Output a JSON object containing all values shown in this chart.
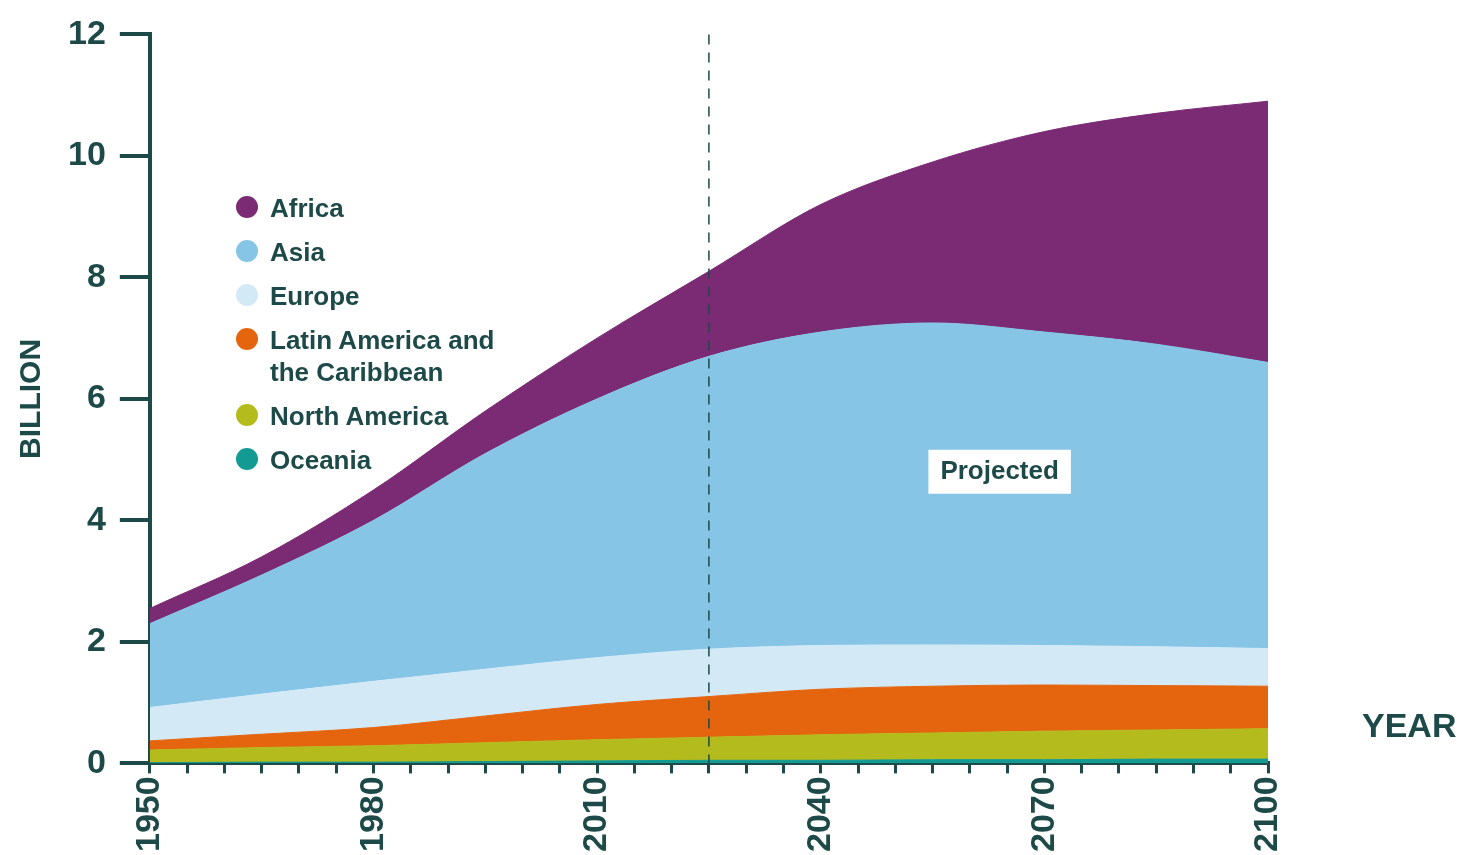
{
  "chart_data": {
    "type": "area",
    "stacked": true,
    "xlabel": "YEAR",
    "ylabel": "BILLION",
    "x": [
      1950,
      1965,
      1980,
      1995,
      2010,
      2025,
      2040,
      2055,
      2070,
      2085,
      2100
    ],
    "series": [
      {
        "name": "Oceania",
        "color": "#139a93",
        "values": [
          0.01,
          0.02,
          0.02,
          0.03,
          0.04,
          0.05,
          0.05,
          0.06,
          0.06,
          0.07,
          0.07
        ]
      },
      {
        "name": "North America",
        "color": "#b4bb1c",
        "values": [
          0.21,
          0.24,
          0.27,
          0.31,
          0.35,
          0.38,
          0.42,
          0.44,
          0.47,
          0.48,
          0.5
        ]
      },
      {
        "name": "Latin America and the Caribbean",
        "color": "#e5650f",
        "values": [
          0.15,
          0.22,
          0.3,
          0.44,
          0.58,
          0.67,
          0.75,
          0.77,
          0.76,
          0.73,
          0.7
        ]
      },
      {
        "name": "Europe",
        "color": "#d4e9f6",
        "values": [
          0.55,
          0.66,
          0.76,
          0.77,
          0.77,
          0.78,
          0.72,
          0.68,
          0.65,
          0.64,
          0.62
        ]
      },
      {
        "name": "Asia",
        "color": "#86c5e6",
        "values": [
          1.38,
          1.96,
          2.65,
          3.55,
          4.26,
          4.82,
          5.16,
          5.3,
          5.16,
          4.98,
          4.71
        ]
      },
      {
        "name": "Africa",
        "color": "#7b2a74",
        "values": [
          0.25,
          0.3,
          0.5,
          0.7,
          1.0,
          1.4,
          2.1,
          2.65,
          3.3,
          3.8,
          4.3
        ]
      }
    ],
    "xlim": [
      1950,
      2100
    ],
    "xticks": [
      1950,
      {
        "value": 1955,
        "label": null
      },
      {
        "value": 1960,
        "label": null
      },
      {
        "value": 1965,
        "label": null
      },
      {
        "value": 1970,
        "label": null
      },
      {
        "value": 1975,
        "label": null
      },
      1980,
      {
        "value": 1985,
        "label": null
      },
      {
        "value": 1990,
        "label": null
      },
      {
        "value": 1995,
        "label": null
      },
      {
        "value": 2000,
        "label": null
      },
      {
        "value": 2005,
        "label": null
      },
      2010,
      {
        "value": 2015,
        "label": null
      },
      {
        "value": 2020,
        "label": null
      },
      {
        "value": 2025,
        "label": null
      },
      {
        "value": 2030,
        "label": null
      },
      {
        "value": 2035,
        "label": null
      },
      2040,
      {
        "value": 2045,
        "label": null
      },
      {
        "value": 2050,
        "label": null
      },
      {
        "value": 2055,
        "label": null
      },
      {
        "value": 2060,
        "label": null
      },
      {
        "value": 2065,
        "label": null
      },
      2070,
      {
        "value": 2075,
        "label": null
      },
      {
        "value": 2080,
        "label": null
      },
      {
        "value": 2085,
        "label": null
      },
      {
        "value": 2090,
        "label": null
      },
      {
        "value": 2095,
        "label": null
      },
      2100
    ],
    "ylim": [
      0,
      12
    ],
    "yticks": [
      0,
      2,
      4,
      6,
      8,
      10,
      12
    ],
    "ref_lines": [
      {
        "axis": "x",
        "value": 2025,
        "line_style": "dashed",
        "color": "#1d4a48"
      }
    ],
    "annotations": [
      "Projected"
    ],
    "legend": "top left",
    "grid": false,
    "line_style": "solid",
    "marker": "none"
  }
}
